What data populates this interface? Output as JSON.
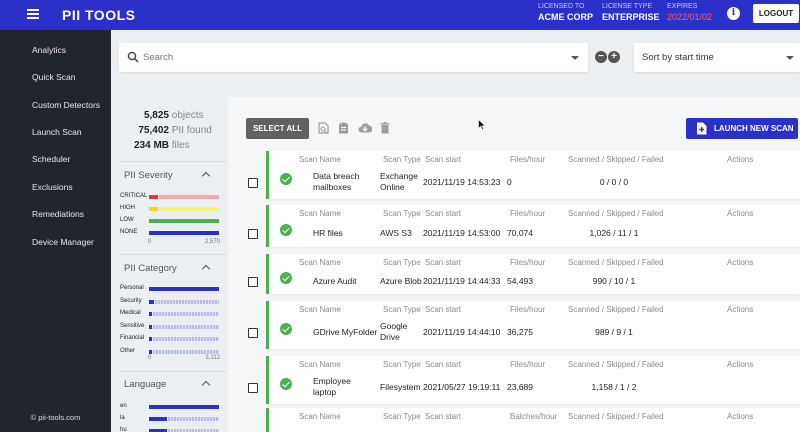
{
  "app": {
    "logo": "PII TOOLS"
  },
  "license": [
    {
      "label": "LICENSED TO",
      "value": "ACME CORP",
      "left": 538
    },
    {
      "label": "LICENSE TYPE",
      "value": "ENTERPRISE",
      "left": 602
    },
    {
      "label": "EXPIRES",
      "value": "2022/01/02",
      "left": 667
    }
  ],
  "header": {
    "info": "i",
    "logout_label": "LOGOUT"
  },
  "sidebar": {
    "items": [
      {
        "label": "Analytics",
        "icon": "bar-chart-icon"
      },
      {
        "label": "Quick Scan",
        "icon": "quick-scan-icon"
      },
      {
        "label": "Custom Detectors",
        "icon": "gear-icon"
      },
      {
        "label": "Launch Scan",
        "icon": "folder-plus-icon"
      },
      {
        "label": "Scheduler",
        "icon": "sync-icon"
      },
      {
        "label": "Exclusions",
        "icon": "minus-circle-icon"
      },
      {
        "label": "Remediations",
        "icon": "hand-icon"
      },
      {
        "label": "Device Manager",
        "icon": "devices-icon"
      }
    ],
    "footer": "© pii-tools.com"
  },
  "search": {
    "placeholder": "Search"
  },
  "sort": {
    "value": "Sort by start time"
  },
  "stats": [
    {
      "value": "5,825",
      "unit": "objects"
    },
    {
      "value": "75,402",
      "unit": "PII found"
    },
    {
      "value": "234 MB",
      "unit": "files"
    }
  ],
  "filters": {
    "severity": {
      "title": "PII Severity",
      "rows": [
        {
          "name": "CRITICAL",
          "frac": 0.13,
          "color": "#e53935",
          "rest": "#f6a9a9"
        },
        {
          "name": "HIGH",
          "frac": 0.13,
          "color": "#f9d71c",
          "rest": "#f9f27a"
        },
        {
          "name": "LOW",
          "frac": 1.0,
          "color": "#4caf50",
          "rest": "#4caf50"
        },
        {
          "name": "NONE",
          "frac": 1.0,
          "color": "#2b30c8",
          "rest": "#2b30c8"
        }
      ],
      "axis_min": "0",
      "axis_max": "2,570"
    },
    "category": {
      "title": "PII Category",
      "rows": [
        {
          "name": "Personal",
          "frac": 1.0
        },
        {
          "name": "Security",
          "frac": 0.07
        },
        {
          "name": "Medical",
          "frac": 0.04
        },
        {
          "name": "Sensitive",
          "frac": 0.04
        },
        {
          "name": "Financial",
          "frac": 0.04
        },
        {
          "name": "Other",
          "frac": 0.04
        }
      ],
      "axis_min": "0",
      "axis_max": "3,112"
    },
    "language": {
      "title": "Language",
      "rows": [
        {
          "name": "en",
          "frac": 1.0
        },
        {
          "name": "la",
          "frac": 0.25
        },
        {
          "name": "hu",
          "frac": 0.25
        }
      ]
    }
  },
  "toolbar": {
    "select_all": "SELECT ALL",
    "launch": "LAUNCH NEW SCAN"
  },
  "columns": {
    "name": "Scan Name",
    "type": "Scan Type",
    "start": "Scan start",
    "rate": "Files/hour",
    "rate_alt": "Batches/hour",
    "counts": "Scanned / Skipped / Failed",
    "actions": "Actions"
  },
  "scans": [
    {
      "name": [
        "Data breach",
        "mailboxes"
      ],
      "type": [
        "Exchange",
        "Online"
      ],
      "start": "2021/11/19 14:53:23",
      "rate": "0",
      "counts": "0 / 0 / 0"
    },
    {
      "name": [
        "HR files"
      ],
      "type": [
        "AWS S3"
      ],
      "start": "2021/11/19 14:53:00",
      "rate": "70,074",
      "counts": "1,026 / 11 / 1"
    },
    {
      "name": [
        "Azure Audit"
      ],
      "type": [
        "Azure Blob"
      ],
      "start": "2021/11/19 14:44:33",
      "rate": "54,493",
      "counts": "990 / 10 / 1"
    },
    {
      "name": [
        "GDrive MyFolder"
      ],
      "type": [
        "Google",
        "Drive"
      ],
      "start": "2021/11/19 14:44:10",
      "rate": "36,275",
      "counts": "989 / 9 / 1"
    },
    {
      "name": [
        "Employee",
        "laptop"
      ],
      "type": [
        "Filesystem"
      ],
      "start": "2021/05/27 19:19:11",
      "rate": "23,689",
      "counts": "1,158 / 1 / 2"
    },
    {
      "name": [],
      "type": [],
      "start": "",
      "rate": "",
      "counts": ""
    }
  ]
}
